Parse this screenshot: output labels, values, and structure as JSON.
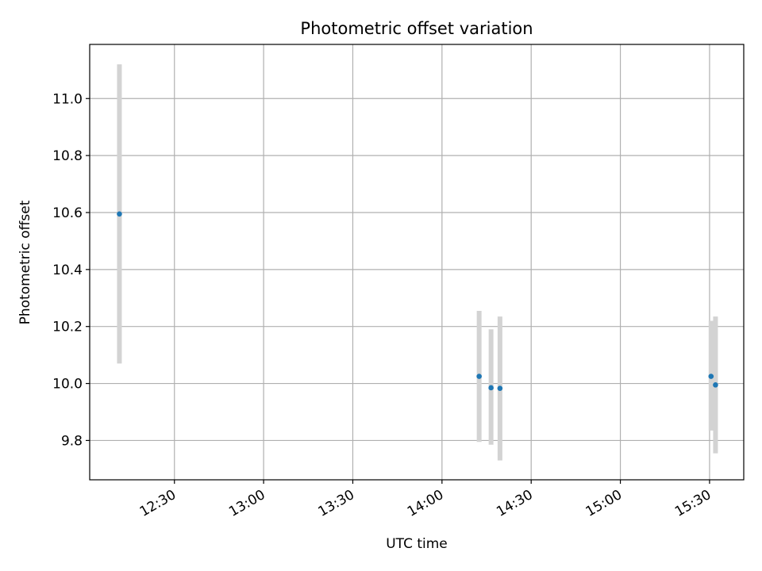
{
  "chart_data": {
    "type": "scatter",
    "title": "Photometric offset variation",
    "xlabel": "UTC time",
    "ylabel": "Photometric offset",
    "xlim": [
      "12:01:30",
      "15:41:30"
    ],
    "ylim": [
      9.662,
      11.19
    ],
    "grid": true,
    "x_ticks": [
      "12:30",
      "13:00",
      "13:30",
      "14:00",
      "14:30",
      "15:00",
      "15:30"
    ],
    "y_ticks": [
      9.8,
      10.0,
      10.2,
      10.4,
      10.6,
      10.8,
      11.0
    ],
    "y_tick_labels": [
      "9.8",
      "10.0",
      "10.2",
      "10.4",
      "10.6",
      "10.8",
      "11.0"
    ],
    "points": [
      {
        "time": "12:11:30",
        "y": 10.595,
        "ylow": 10.07,
        "yhigh": 11.12
      },
      {
        "time": "14:12:30",
        "y": 10.025,
        "ylow": 9.795,
        "yhigh": 10.255
      },
      {
        "time": "14:16:30",
        "y": 9.985,
        "ylow": 9.785,
        "yhigh": 10.19
      },
      {
        "time": "14:19:30",
        "y": 9.983,
        "ylow": 9.73,
        "yhigh": 10.235
      },
      {
        "time": "15:30:30",
        "y": 10.025,
        "ylow": 9.835,
        "yhigh": 10.22
      },
      {
        "time": "15:32:00",
        "y": 9.995,
        "ylow": 9.755,
        "yhigh": 10.235
      }
    ],
    "colors": {
      "marker": "#1f77b4",
      "errorbar": "#d3d3d3",
      "grid": "#b0b0b0",
      "axes": "#000000"
    }
  }
}
